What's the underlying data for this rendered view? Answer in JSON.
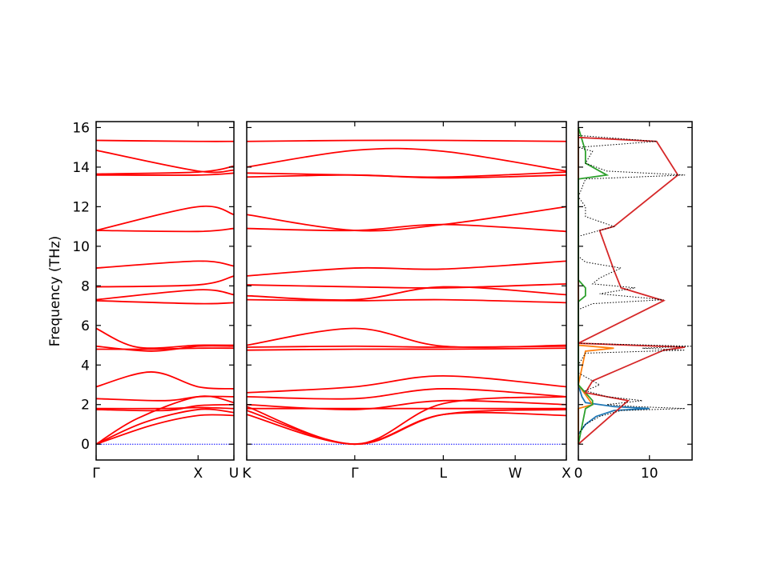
{
  "chart_data": {
    "type": "line",
    "ylabel": "Frequency (THz)",
    "ylim": [
      -0.8,
      16.3
    ],
    "yticks": [
      0,
      2,
      4,
      6,
      8,
      10,
      12,
      14,
      16
    ],
    "colors": {
      "bands": "#ff0000",
      "zero_line": "#0000ff",
      "dos_total": "#000000",
      "dos_partials": [
        "#1f77b4",
        "#ff7f0e",
        "#2ca02c",
        "#d62728"
      ]
    },
    "band_segments": [
      {
        "labels": [
          "Γ",
          "X",
          "U"
        ],
        "label_positions": [
          0,
          0.74,
          1
        ],
        "bands": [
          {
            "x": [
              0,
              0.4,
              0.74,
              1
            ],
            "y": [
              0,
              0.95,
              1.45,
              1.45
            ]
          },
          {
            "x": [
              0,
              0.35,
              0.74,
              1
            ],
            "y": [
              0,
              1.1,
              1.75,
              1.6
            ]
          },
          {
            "x": [
              0,
              0.3,
              0.74,
              1
            ],
            "y": [
              0,
              1.3,
              2.4,
              2.1
            ]
          },
          {
            "x": [
              0,
              0.5,
              0.74,
              1
            ],
            "y": [
              1.8,
              1.8,
              1.85,
              1.8
            ]
          },
          {
            "x": [
              0,
              0.5,
              0.74,
              1
            ],
            "y": [
              1.75,
              1.7,
              1.95,
              2.0
            ]
          },
          {
            "x": [
              0,
              0.5,
              0.74,
              1
            ],
            "y": [
              2.3,
              2.2,
              2.4,
              2.4
            ]
          },
          {
            "x": [
              0,
              0.4,
              0.74,
              1
            ],
            "y": [
              2.9,
              3.65,
              2.9,
              2.8
            ]
          },
          {
            "x": [
              0,
              0.4,
              0.74,
              1
            ],
            "y": [
              4.8,
              4.8,
              4.85,
              4.85
            ]
          },
          {
            "x": [
              0,
              0.4,
              0.74,
              1
            ],
            "y": [
              4.95,
              4.7,
              4.95,
              4.95
            ]
          },
          {
            "x": [
              0,
              0.3,
              0.74,
              1
            ],
            "y": [
              5.85,
              4.9,
              5.0,
              5.0
            ]
          },
          {
            "x": [
              0,
              0.74,
              1
            ],
            "y": [
              7.25,
              7.1,
              7.15
            ]
          },
          {
            "x": [
              0,
              0.74,
              1
            ],
            "y": [
              7.3,
              7.8,
              7.55
            ]
          },
          {
            "x": [
              0,
              0.74,
              1
            ],
            "y": [
              7.95,
              8.05,
              8.5
            ]
          },
          {
            "x": [
              0,
              0.74,
              1
            ],
            "y": [
              8.9,
              9.25,
              9.0
            ]
          },
          {
            "x": [
              0,
              0.74,
              1
            ],
            "y": [
              10.8,
              12.0,
              11.6
            ]
          },
          {
            "x": [
              0,
              0.74,
              1
            ],
            "y": [
              10.8,
              10.75,
              10.9
            ]
          },
          {
            "x": [
              0,
              0.74,
              1
            ],
            "y": [
              13.6,
              13.6,
              13.7
            ]
          },
          {
            "x": [
              0,
              0.74,
              1
            ],
            "y": [
              13.65,
              13.75,
              14.05
            ]
          },
          {
            "x": [
              0,
              0.74,
              1
            ],
            "y": [
              14.85,
              13.8,
              13.85
            ]
          },
          {
            "x": [
              0,
              0.74,
              1
            ],
            "y": [
              15.35,
              15.3,
              15.3
            ]
          }
        ]
      },
      {
        "labels": [
          "K",
          "Γ",
          "L",
          "W",
          "X"
        ],
        "label_positions": [
          0,
          0.338,
          0.615,
          0.84,
          1
        ],
        "bands": [
          {
            "x": [
              0,
              0.338,
              0.615,
              1
            ],
            "y": [
              1.5,
              0,
              1.5,
              1.45
            ]
          },
          {
            "x": [
              0,
              0.338,
              0.615,
              1
            ],
            "y": [
              1.7,
              0,
              1.5,
              1.75
            ]
          },
          {
            "x": [
              0,
              0.338,
              0.615,
              1
            ],
            "y": [
              1.9,
              0,
              2.05,
              2.4
            ]
          },
          {
            "x": [
              0,
              0.338,
              0.615,
              1
            ],
            "y": [
              1.8,
              1.8,
              1.8,
              1.8
            ]
          },
          {
            "x": [
              0,
              0.338,
              0.615,
              1
            ],
            "y": [
              2.0,
              1.75,
              2.2,
              2.0
            ]
          },
          {
            "x": [
              0,
              0.338,
              0.615,
              1
            ],
            "y": [
              2.4,
              2.3,
              2.8,
              2.4
            ]
          },
          {
            "x": [
              0,
              0.338,
              0.615,
              1
            ],
            "y": [
              2.6,
              2.9,
              3.45,
              2.9
            ]
          },
          {
            "x": [
              0,
              0.338,
              0.615,
              1
            ],
            "y": [
              4.75,
              4.8,
              4.8,
              4.85
            ]
          },
          {
            "x": [
              0,
              0.338,
              0.615,
              1
            ],
            "y": [
              4.9,
              4.95,
              4.9,
              4.95
            ]
          },
          {
            "x": [
              0,
              0.338,
              0.615,
              1
            ],
            "y": [
              5.0,
              5.85,
              4.95,
              5.0
            ]
          },
          {
            "x": [
              0,
              0.338,
              0.615,
              1
            ],
            "y": [
              7.3,
              7.25,
              7.3,
              7.15
            ]
          },
          {
            "x": [
              0,
              0.338,
              0.615,
              1
            ],
            "y": [
              7.5,
              7.3,
              7.95,
              7.55
            ]
          },
          {
            "x": [
              0,
              0.338,
              0.615,
              1
            ],
            "y": [
              8.05,
              7.95,
              7.9,
              8.1
            ]
          },
          {
            "x": [
              0,
              0.338,
              0.615,
              1
            ],
            "y": [
              8.5,
              8.9,
              8.85,
              9.25
            ]
          },
          {
            "x": [
              0,
              0.338,
              0.615,
              1
            ],
            "y": [
              11.6,
              10.8,
              11.1,
              12.0
            ]
          },
          {
            "x": [
              0,
              0.338,
              0.615,
              1
            ],
            "y": [
              10.9,
              10.8,
              11.1,
              10.75
            ]
          },
          {
            "x": [
              0,
              0.338,
              0.615,
              1
            ],
            "y": [
              13.5,
              13.6,
              13.45,
              13.6
            ]
          },
          {
            "x": [
              0,
              0.338,
              0.615,
              1
            ],
            "y": [
              13.7,
              13.6,
              13.5,
              13.75
            ]
          },
          {
            "x": [
              0,
              0.338,
              0.615,
              1
            ],
            "y": [
              14.0,
              14.85,
              14.8,
              13.8
            ]
          },
          {
            "x": [
              0,
              0.338,
              0.615,
              1
            ],
            "y": [
              15.3,
              15.35,
              15.35,
              15.3
            ]
          }
        ]
      }
    ],
    "dos": {
      "xlim": [
        0,
        16
      ],
      "xticks": [
        0,
        10
      ],
      "total": {
        "y": [
          0.5,
          1.0,
          1.4,
          1.7,
          1.8,
          1.9,
          2.0,
          2.2,
          2.4,
          2.7,
          3.0,
          3.4,
          3.6,
          4.0,
          4.6,
          4.75,
          4.85,
          4.95,
          5.1,
          6.8,
          7.1,
          7.3,
          7.6,
          7.9,
          8.1,
          8.4,
          8.9,
          9.2,
          9.5,
          10.5,
          10.8,
          11.0,
          11.5,
          12.0,
          12.5,
          13.4,
          13.6,
          13.8,
          14.2,
          14.8,
          15.0,
          15.3,
          15.6
        ],
        "x": [
          0,
          1,
          3,
          6,
          15,
          8,
          4,
          9,
          4,
          1,
          3,
          1,
          0,
          0,
          1,
          15,
          9,
          16,
          0,
          0,
          2,
          12,
          3,
          8,
          2,
          3,
          6,
          1,
          0,
          0,
          3,
          5,
          1,
          1,
          0,
          1,
          15,
          4,
          1,
          2,
          0,
          11,
          0
        ]
      },
      "partials": [
        {
          "y": [
            0.5,
            1.0,
            1.4,
            1.7,
            1.8,
            1.9,
            2.1,
            2.4,
            3.0,
            16
          ],
          "x": [
            0,
            1,
            2.5,
            5,
            10,
            5,
            1,
            0.5,
            0,
            0
          ]
        },
        {
          "y": [
            0,
            1.8,
            2.0,
            2.5,
            3.0,
            4.7,
            4.85,
            5.0,
            16
          ],
          "x": [
            0,
            0,
            2,
            1,
            0,
            1,
            5,
            0,
            0
          ]
        },
        {
          "y": [
            0,
            1.8,
            2.0,
            2.2,
            2.6,
            3.0,
            7.2,
            7.5,
            7.9,
            8.3,
            13.4,
            13.6,
            14.2,
            14.8,
            16
          ],
          "x": [
            0,
            1,
            2,
            2,
            1,
            0,
            0,
            1,
            1,
            0,
            0,
            4,
            1,
            1,
            0
          ]
        },
        {
          "y": [
            0,
            2.2,
            2.6,
            3.2,
            4.75,
            4.9,
            5.1,
            7.25,
            7.9,
            8.8,
            10.8,
            11.0,
            13.6,
            15.3,
            15.5
          ],
          "x": [
            0,
            7,
            1,
            2,
            12,
            15,
            0,
            12,
            6,
            5,
            3,
            5,
            14,
            11,
            0
          ]
        }
      ]
    }
  }
}
